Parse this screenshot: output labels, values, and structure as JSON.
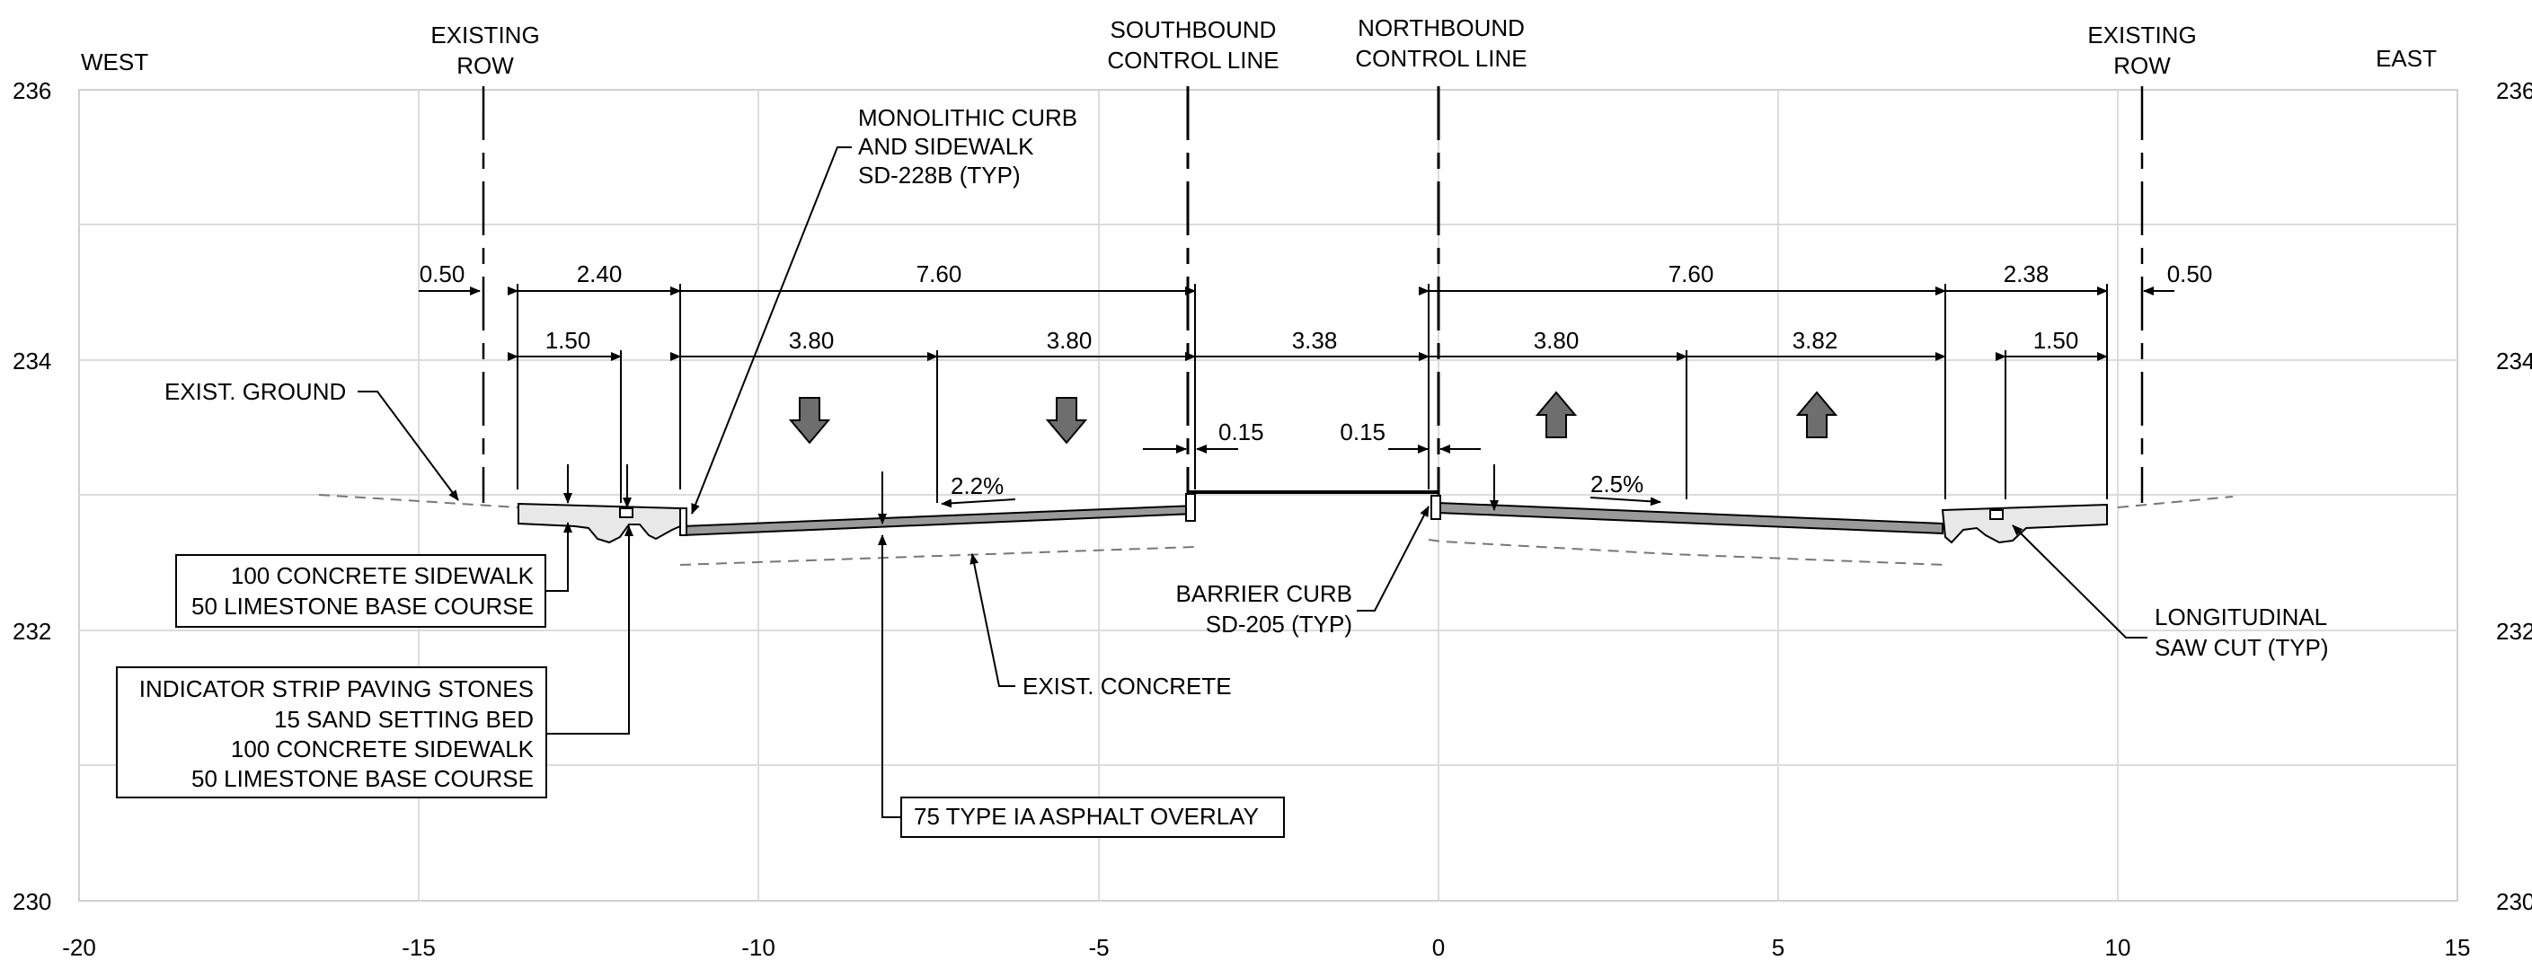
{
  "chart_data": {
    "type": "cross-section",
    "xlim": [
      -20,
      15
    ],
    "ylim": [
      230,
      236
    ],
    "x_ticks": [
      "-20",
      "-15",
      "-10",
      "-5",
      "0",
      "5",
      "10",
      "15"
    ],
    "y_ticks": [
      "236",
      "234",
      "232",
      "230"
    ],
    "grid": true,
    "direction_labels": {
      "west": "WEST",
      "east": "EAST"
    },
    "control_lines": {
      "southbound": [
        "SOUTHBOUND",
        "CONTROL LINE"
      ],
      "northbound": [
        "NORTHBOUND",
        "CONTROL LINE"
      ],
      "existing_row": [
        "EXISTING",
        "ROW"
      ]
    },
    "dimensions": {
      "top": [
        "0.50",
        "2.40",
        "7.60",
        "7.60",
        "2.38",
        "0.50"
      ],
      "middle": [
        "1.50",
        "3.80",
        "3.80",
        "3.38",
        "3.80",
        "3.82",
        "1.50"
      ],
      "curb_offsets": [
        "0.15",
        "0.15"
      ],
      "slopes": [
        "2.2%",
        "2.5%"
      ]
    },
    "callouts": {
      "monolithic_curb": [
        "MONOLITHIC CURB",
        "AND SIDEWALK",
        "SD-228B (TYP)"
      ],
      "exist_ground": "EXIST. GROUND",
      "sidewalk_note": [
        "100 CONCRETE SIDEWALK",
        "50 LIMESTONE BASE COURSE"
      ],
      "indicator_note": [
        "INDICATOR STRIP PAVING STONES",
        "15 SAND SETTING BED",
        "100 CONCRETE SIDEWALK",
        "50 LIMESTONE BASE COURSE"
      ],
      "exist_concrete": "EXIST. CONCRETE",
      "asphalt_overlay": "75 TYPE IA ASPHALT OVERLAY",
      "barrier_curb": [
        "BARRIER CURB",
        "SD-205 (TYP)"
      ],
      "saw_cut": [
        "LONGITUDINAL",
        "SAW CUT (TYP)"
      ]
    },
    "traffic_arrows": [
      "down",
      "down",
      "up",
      "up"
    ]
  }
}
